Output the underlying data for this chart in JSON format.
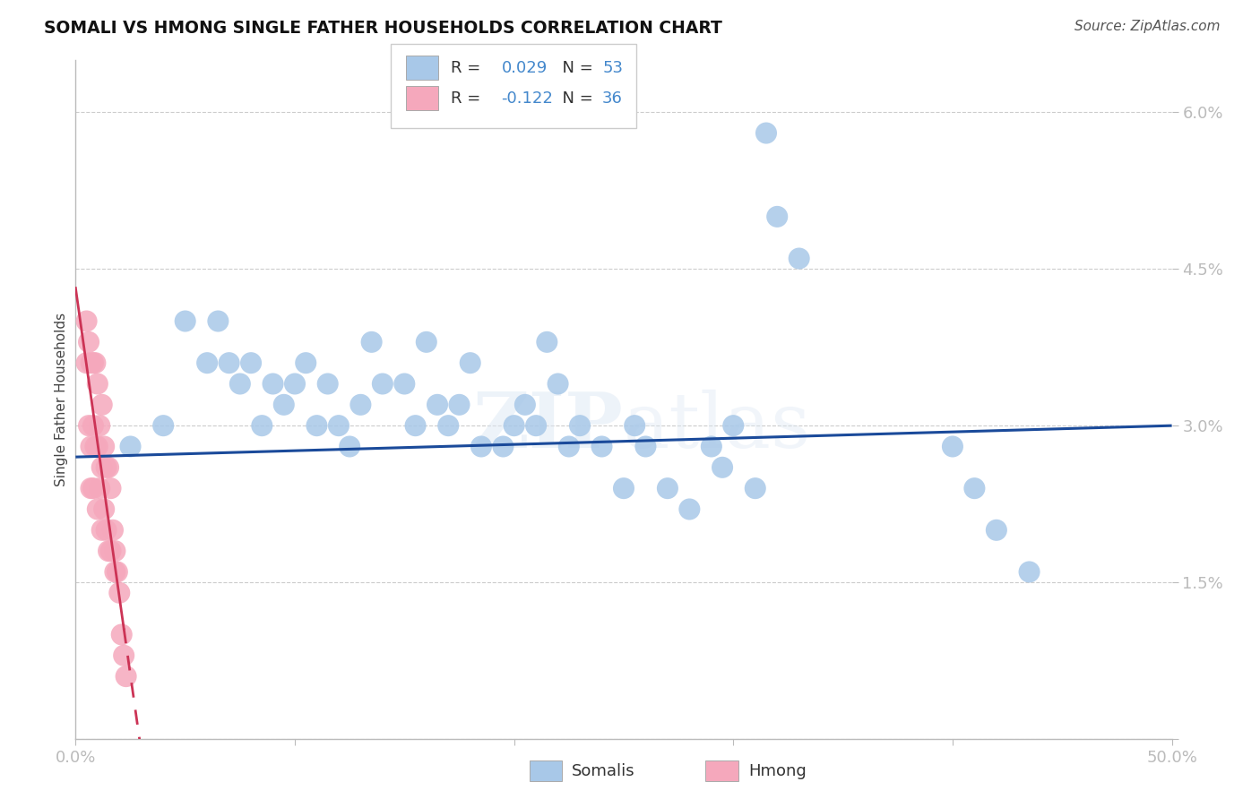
{
  "title": "SOMALI VS HMONG SINGLE FATHER HOUSEHOLDS CORRELATION CHART",
  "source": "Source: ZipAtlas.com",
  "ylabel": "Single Father Households",
  "xlim": [
    0.0,
    0.5
  ],
  "ylim": [
    0.0,
    0.065
  ],
  "somali_R": 0.029,
  "somali_N": 53,
  "hmong_R": -0.122,
  "hmong_N": 36,
  "somali_color": "#a8c8e8",
  "hmong_color": "#f5a8bc",
  "somali_line_color": "#1a4a9a",
  "hmong_line_color": "#cc3355",
  "background_color": "#ffffff",
  "grid_color": "#cccccc",
  "watermark": "ZIPatlas",
  "axis_tick_color": "#4488cc",
  "somali_x": [
    0.025,
    0.04,
    0.05,
    0.06,
    0.065,
    0.07,
    0.075,
    0.08,
    0.085,
    0.09,
    0.095,
    0.1,
    0.105,
    0.11,
    0.115,
    0.12,
    0.125,
    0.13,
    0.135,
    0.14,
    0.15,
    0.155,
    0.16,
    0.165,
    0.17,
    0.175,
    0.18,
    0.185,
    0.195,
    0.2,
    0.205,
    0.21,
    0.215,
    0.22,
    0.225,
    0.23,
    0.24,
    0.25,
    0.255,
    0.26,
    0.27,
    0.28,
    0.29,
    0.295,
    0.3,
    0.31,
    0.315,
    0.32,
    0.33,
    0.4,
    0.41,
    0.42,
    0.435
  ],
  "somali_y": [
    0.028,
    0.03,
    0.04,
    0.036,
    0.04,
    0.036,
    0.034,
    0.036,
    0.03,
    0.034,
    0.032,
    0.034,
    0.036,
    0.03,
    0.034,
    0.03,
    0.028,
    0.032,
    0.038,
    0.034,
    0.034,
    0.03,
    0.038,
    0.032,
    0.03,
    0.032,
    0.036,
    0.028,
    0.028,
    0.03,
    0.032,
    0.03,
    0.038,
    0.034,
    0.028,
    0.03,
    0.028,
    0.024,
    0.03,
    0.028,
    0.024,
    0.022,
    0.028,
    0.026,
    0.03,
    0.024,
    0.058,
    0.05,
    0.046,
    0.028,
    0.024,
    0.02,
    0.016
  ],
  "hmong_x": [
    0.005,
    0.005,
    0.006,
    0.006,
    0.007,
    0.007,
    0.007,
    0.008,
    0.008,
    0.008,
    0.009,
    0.009,
    0.01,
    0.01,
    0.01,
    0.011,
    0.011,
    0.012,
    0.012,
    0.012,
    0.013,
    0.013,
    0.014,
    0.014,
    0.015,
    0.015,
    0.016,
    0.016,
    0.017,
    0.018,
    0.018,
    0.019,
    0.02,
    0.021,
    0.022,
    0.023
  ],
  "hmong_y": [
    0.04,
    0.036,
    0.038,
    0.03,
    0.036,
    0.028,
    0.024,
    0.036,
    0.03,
    0.024,
    0.036,
    0.028,
    0.034,
    0.028,
    0.022,
    0.03,
    0.024,
    0.032,
    0.026,
    0.02,
    0.028,
    0.022,
    0.026,
    0.02,
    0.026,
    0.018,
    0.024,
    0.018,
    0.02,
    0.018,
    0.016,
    0.016,
    0.014,
    0.01,
    0.008,
    0.006
  ]
}
